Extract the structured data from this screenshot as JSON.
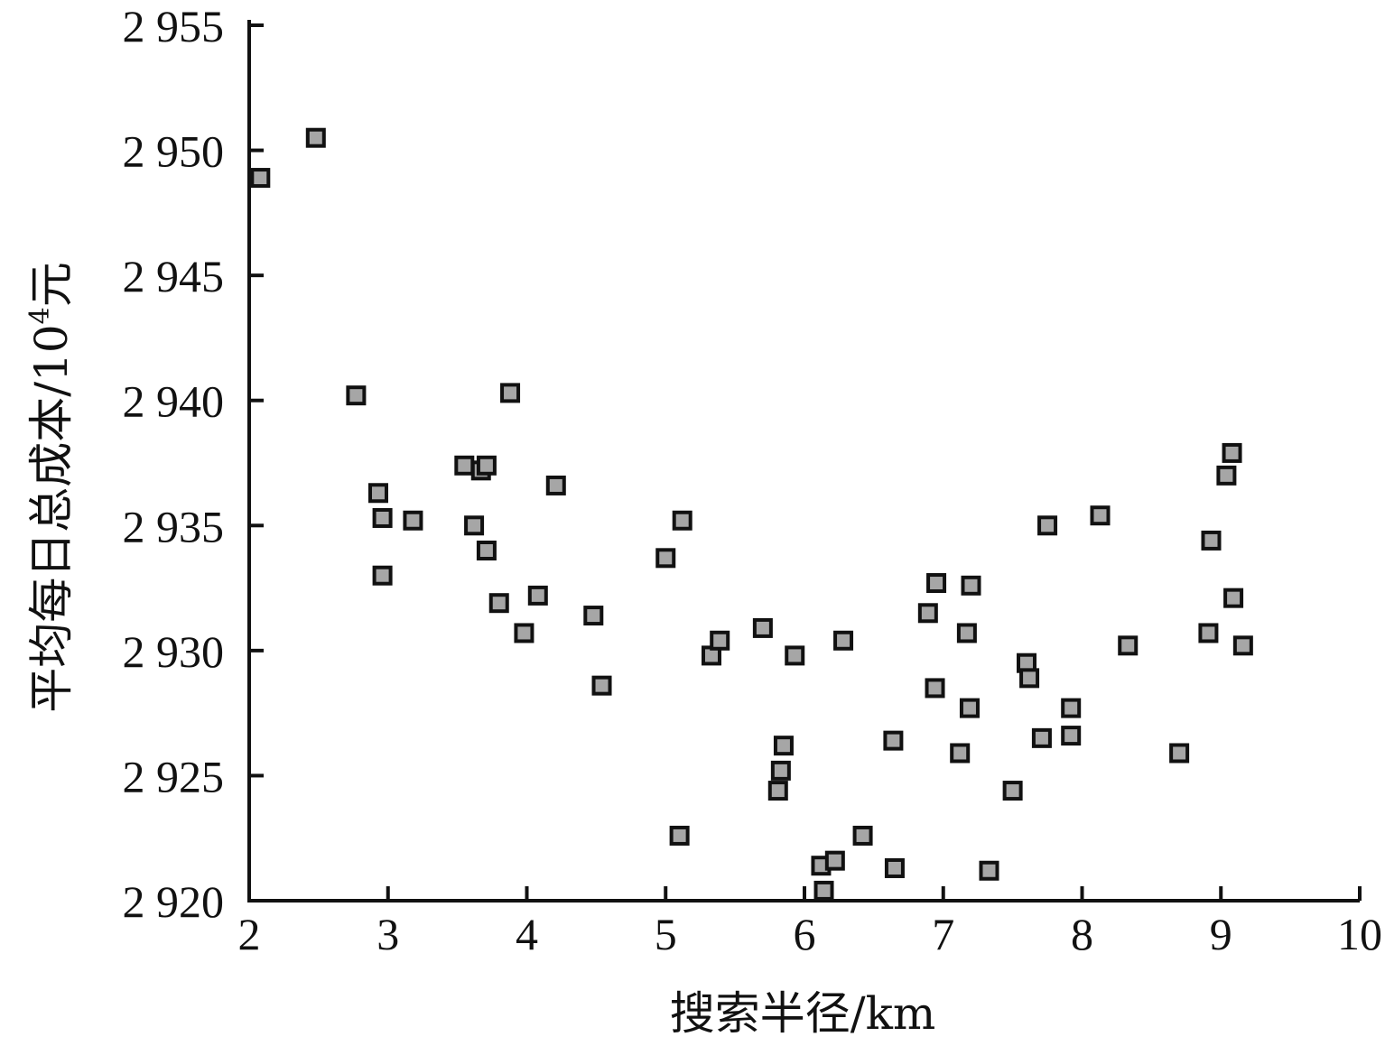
{
  "chart_data": {
    "type": "scatter",
    "xlabel": "搜索半径/km",
    "ylabel": {
      "main": "平均每日总成本/10",
      "superscript": "4",
      "suffix": "元"
    },
    "xlim": [
      2,
      10
    ],
    "ylim": [
      2920,
      2955
    ],
    "x_ticks": [
      2,
      3,
      4,
      5,
      6,
      7,
      8,
      9,
      10
    ],
    "x_tick_labels": [
      "2",
      "3",
      "4",
      "5",
      "6",
      "7",
      "8",
      "9",
      "10"
    ],
    "y_ticks": [
      2920,
      2925,
      2930,
      2935,
      2940,
      2945,
      2950,
      2955
    ],
    "y_tick_labels": [
      "2 920",
      "2 925",
      "2 930",
      "2 935",
      "2 940",
      "2 945",
      "2 950",
      "2 955"
    ],
    "grid": false,
    "marker": "square",
    "marker_color": "#a6a6a6",
    "series": [
      {
        "points": [
          [
            2.08,
            2948.9
          ],
          [
            2.48,
            2950.5
          ],
          [
            2.77,
            2940.2
          ],
          [
            2.93,
            2936.3
          ],
          [
            2.96,
            2935.3
          ],
          [
            2.96,
            2933.0
          ],
          [
            3.18,
            2935.2
          ],
          [
            3.55,
            2937.4
          ],
          [
            3.62,
            2935.0
          ],
          [
            3.67,
            2937.2
          ],
          [
            3.71,
            2937.4
          ],
          [
            3.71,
            2934.0
          ],
          [
            3.8,
            2931.9
          ],
          [
            3.88,
            2940.3
          ],
          [
            3.98,
            2930.7
          ],
          [
            4.08,
            2932.2
          ],
          [
            4.21,
            2936.6
          ],
          [
            4.48,
            2931.4
          ],
          [
            4.54,
            2928.6
          ],
          [
            5.0,
            2933.7
          ],
          [
            5.1,
            2922.6
          ],
          [
            5.12,
            2935.2
          ],
          [
            5.33,
            2929.8
          ],
          [
            5.39,
            2930.4
          ],
          [
            5.7,
            2930.9
          ],
          [
            5.81,
            2924.4
          ],
          [
            5.83,
            2925.2
          ],
          [
            5.85,
            2926.2
          ],
          [
            5.93,
            2929.8
          ],
          [
            6.12,
            2921.4
          ],
          [
            6.14,
            2920.4
          ],
          [
            6.22,
            2921.6
          ],
          [
            6.28,
            2930.4
          ],
          [
            6.42,
            2922.6
          ],
          [
            6.64,
            2926.4
          ],
          [
            6.65,
            2921.3
          ],
          [
            6.89,
            2931.5
          ],
          [
            6.94,
            2928.5
          ],
          [
            6.95,
            2932.7
          ],
          [
            7.12,
            2925.9
          ],
          [
            7.17,
            2930.7
          ],
          [
            7.19,
            2927.7
          ],
          [
            7.2,
            2932.6
          ],
          [
            7.33,
            2921.2
          ],
          [
            7.5,
            2924.4
          ],
          [
            7.6,
            2929.5
          ],
          [
            7.62,
            2928.9
          ],
          [
            7.71,
            2926.5
          ],
          [
            7.75,
            2935.0
          ],
          [
            7.92,
            2927.7
          ],
          [
            7.92,
            2926.6
          ],
          [
            8.13,
            2935.4
          ],
          [
            8.33,
            2930.2
          ],
          [
            8.7,
            2925.9
          ],
          [
            8.91,
            2930.7
          ],
          [
            8.93,
            2934.4
          ],
          [
            9.04,
            2937.0
          ],
          [
            9.08,
            2937.9
          ],
          [
            9.09,
            2932.1
          ],
          [
            9.16,
            2930.2
          ]
        ]
      }
    ]
  }
}
